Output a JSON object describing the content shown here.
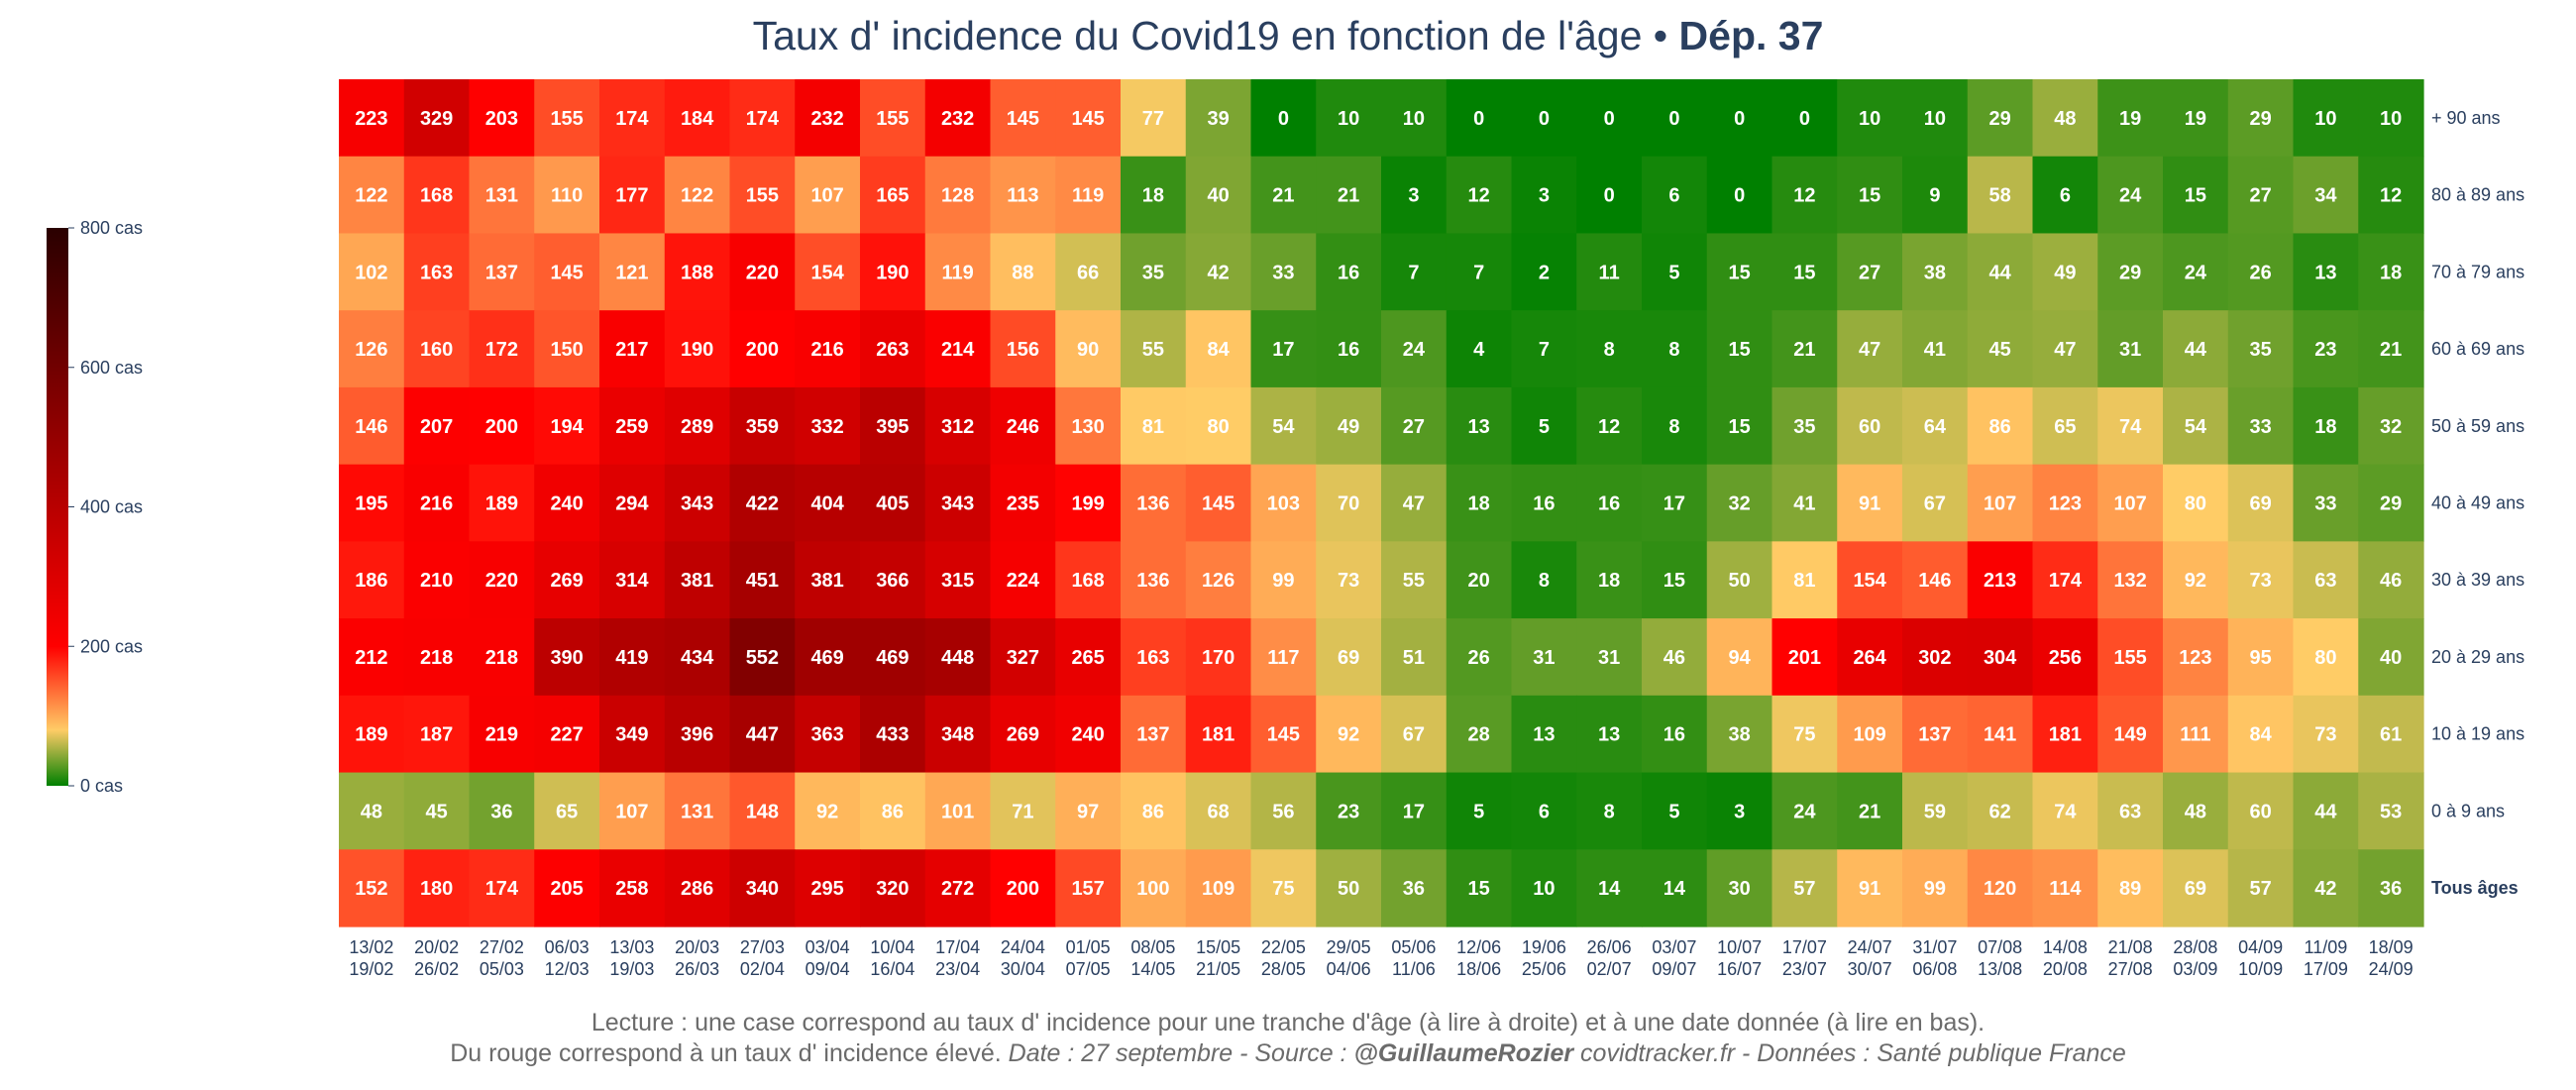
{
  "title": {
    "main": "Taux d' incidence du Covid19 en fonction de l'âge",
    "separator": " • ",
    "dep": "Dép. 37"
  },
  "colors": {
    "scale": [
      [
        0.0,
        "#008000"
      ],
      [
        0.1,
        "#ffcc66"
      ],
      [
        0.25,
        "#ff0000"
      ],
      [
        1.0,
        "#2a0000"
      ]
    ],
    "text": "#2a3f5f",
    "footer": "#6b6b6b"
  },
  "colorbar": {
    "ticks": [
      {
        "value": 0,
        "label": "0 cas"
      },
      {
        "value": 200,
        "label": "200 cas"
      },
      {
        "value": 400,
        "label": "400 cas"
      },
      {
        "value": 600,
        "label": "600 cas"
      },
      {
        "value": 800,
        "label": "800 cas"
      }
    ]
  },
  "chart_data": {
    "type": "heatmap",
    "title": "Taux d' incidence du Covid19 en fonction de l'âge • Dép. 37",
    "zlim": [
      0,
      800
    ],
    "columns": [
      [
        "13/02",
        "19/02"
      ],
      [
        "20/02",
        "26/02"
      ],
      [
        "27/02",
        "05/03"
      ],
      [
        "06/03",
        "12/03"
      ],
      [
        "13/03",
        "19/03"
      ],
      [
        "20/03",
        "26/03"
      ],
      [
        "27/03",
        "02/04"
      ],
      [
        "03/04",
        "09/04"
      ],
      [
        "10/04",
        "16/04"
      ],
      [
        "17/04",
        "23/04"
      ],
      [
        "24/04",
        "30/04"
      ],
      [
        "01/05",
        "07/05"
      ],
      [
        "08/05",
        "14/05"
      ],
      [
        "15/05",
        "21/05"
      ],
      [
        "22/05",
        "28/05"
      ],
      [
        "29/05",
        "04/06"
      ],
      [
        "05/06",
        "11/06"
      ],
      [
        "12/06",
        "18/06"
      ],
      [
        "19/06",
        "25/06"
      ],
      [
        "26/06",
        "02/07"
      ],
      [
        "03/07",
        "09/07"
      ],
      [
        "10/07",
        "16/07"
      ],
      [
        "17/07",
        "23/07"
      ],
      [
        "24/07",
        "30/07"
      ],
      [
        "31/07",
        "06/08"
      ],
      [
        "07/08",
        "13/08"
      ],
      [
        "14/08",
        "20/08"
      ],
      [
        "21/08",
        "27/08"
      ],
      [
        "28/08",
        "03/09"
      ],
      [
        "04/09",
        "10/09"
      ],
      [
        "11/09",
        "17/09"
      ],
      [
        "18/09",
        "24/09"
      ]
    ],
    "rows": [
      {
        "label": "+ 90 ans",
        "bold": false,
        "values": [
          223,
          329,
          203,
          155,
          174,
          184,
          174,
          232,
          155,
          232,
          145,
          145,
          77,
          39,
          0,
          10,
          10,
          0,
          0,
          0,
          0,
          0,
          0,
          10,
          10,
          29,
          48,
          19,
          19,
          29,
          10,
          10
        ]
      },
      {
        "label": "80 à 89 ans",
        "bold": false,
        "values": [
          122,
          168,
          131,
          110,
          177,
          122,
          155,
          107,
          165,
          128,
          113,
          119,
          18,
          40,
          21,
          21,
          3,
          12,
          3,
          0,
          6,
          0,
          12,
          15,
          9,
          58,
          6,
          24,
          15,
          27,
          34,
          12
        ]
      },
      {
        "label": "70 à 79 ans",
        "bold": false,
        "values": [
          102,
          163,
          137,
          145,
          121,
          188,
          220,
          154,
          190,
          119,
          88,
          66,
          35,
          42,
          33,
          16,
          7,
          7,
          2,
          11,
          5,
          15,
          15,
          27,
          38,
          44,
          49,
          29,
          24,
          26,
          13,
          18
        ]
      },
      {
        "label": "60 à 69 ans",
        "bold": false,
        "values": [
          126,
          160,
          172,
          150,
          217,
          190,
          200,
          216,
          263,
          214,
          156,
          90,
          55,
          84,
          17,
          16,
          24,
          4,
          7,
          8,
          8,
          15,
          21,
          47,
          41,
          45,
          47,
          31,
          44,
          35,
          23,
          21
        ]
      },
      {
        "label": "50 à 59 ans",
        "bold": false,
        "values": [
          146,
          207,
          200,
          194,
          259,
          289,
          359,
          332,
          395,
          312,
          246,
          130,
          81,
          80,
          54,
          49,
          27,
          13,
          5,
          12,
          8,
          15,
          35,
          60,
          64,
          86,
          65,
          74,
          54,
          33,
          18,
          32
        ]
      },
      {
        "label": "40 à 49 ans",
        "bold": false,
        "values": [
          195,
          216,
          189,
          240,
          294,
          343,
          422,
          404,
          405,
          343,
          235,
          199,
          136,
          145,
          103,
          70,
          47,
          18,
          16,
          16,
          17,
          32,
          41,
          91,
          67,
          107,
          123,
          107,
          80,
          69,
          33,
          29
        ]
      },
      {
        "label": "30 à 39 ans",
        "bold": false,
        "values": [
          186,
          210,
          220,
          269,
          314,
          381,
          451,
          381,
          366,
          315,
          224,
          168,
          136,
          126,
          99,
          73,
          55,
          20,
          8,
          18,
          15,
          50,
          81,
          154,
          146,
          213,
          174,
          132,
          92,
          73,
          63,
          46
        ]
      },
      {
        "label": "20 à 29 ans",
        "bold": false,
        "values": [
          212,
          218,
          218,
          390,
          419,
          434,
          552,
          469,
          469,
          448,
          327,
          265,
          163,
          170,
          117,
          69,
          51,
          26,
          31,
          31,
          46,
          94,
          201,
          264,
          302,
          304,
          256,
          155,
          123,
          95,
          80,
          40
        ]
      },
      {
        "label": "10 à 19 ans",
        "bold": false,
        "values": [
          189,
          187,
          219,
          227,
          349,
          396,
          447,
          363,
          433,
          348,
          269,
          240,
          137,
          181,
          145,
          92,
          67,
          28,
          13,
          13,
          16,
          38,
          75,
          109,
          137,
          141,
          181,
          149,
          111,
          84,
          73,
          61
        ]
      },
      {
        "label": "0 à 9 ans",
        "bold": false,
        "values": [
          48,
          45,
          36,
          65,
          107,
          131,
          148,
          92,
          86,
          101,
          71,
          97,
          86,
          68,
          56,
          23,
          17,
          5,
          6,
          8,
          5,
          3,
          24,
          21,
          59,
          62,
          74,
          63,
          48,
          60,
          44,
          53
        ]
      },
      {
        "label": "Tous âges",
        "bold": true,
        "values": [
          152,
          180,
          174,
          205,
          258,
          286,
          340,
          295,
          320,
          272,
          200,
          157,
          100,
          109,
          75,
          50,
          36,
          15,
          10,
          14,
          14,
          30,
          57,
          91,
          99,
          120,
          114,
          89,
          69,
          57,
          42,
          36
        ]
      }
    ]
  },
  "footer": {
    "line1": "Lecture : une case correspond au taux d' incidence pour une tranche d'âge (à lire à droite) et à une date donnée (à lire en bas).",
    "line2_a": "Du rouge correspond à un taux d' incidence élevé.  ",
    "line2_b": "Date : 27 septembre - Source : ",
    "line2_c": "@GuillaumeRozier",
    "line2_d": " covidtracker.fr - Données : Santé publique France"
  }
}
